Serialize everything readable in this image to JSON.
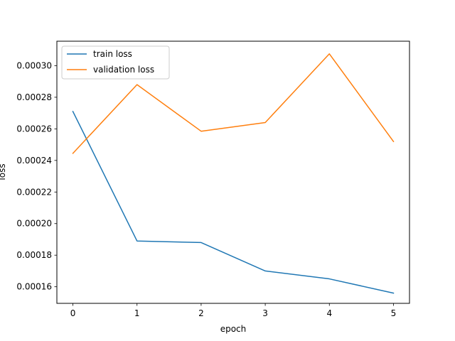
{
  "chart_data": {
    "type": "line",
    "title": "",
    "xlabel": "epoch",
    "ylabel": "loss",
    "x": [
      0,
      1,
      2,
      3,
      4,
      5
    ],
    "xticks": [
      0,
      1,
      2,
      3,
      4,
      5
    ],
    "xtick_labels": [
      "0",
      "1",
      "2",
      "3",
      "4",
      "5"
    ],
    "xlim": [
      -0.25,
      5.25
    ],
    "yticks": [
      0.00016,
      0.00018,
      0.0002,
      0.00022,
      0.00024,
      0.00026,
      0.00028,
      0.0003
    ],
    "ytick_labels": [
      "0.00016",
      "0.00018",
      "0.00020",
      "0.00022",
      "0.00024",
      "0.00026",
      "0.00028",
      "0.00030"
    ],
    "ylim": [
      0.0001495,
      0.0003155
    ],
    "grid": false,
    "legend_location": "upper-left",
    "series": [
      {
        "name": "train loss",
        "color": "#1f77b4",
        "values": [
          0.000271,
          0.000189,
          0.000188,
          0.00017,
          0.000165,
          0.000156
        ]
      },
      {
        "name": "validation loss",
        "color": "#ff7f0e",
        "values": [
          0.0002445,
          0.000288,
          0.0002585,
          0.000264,
          0.0003075,
          0.000252
        ]
      }
    ]
  }
}
